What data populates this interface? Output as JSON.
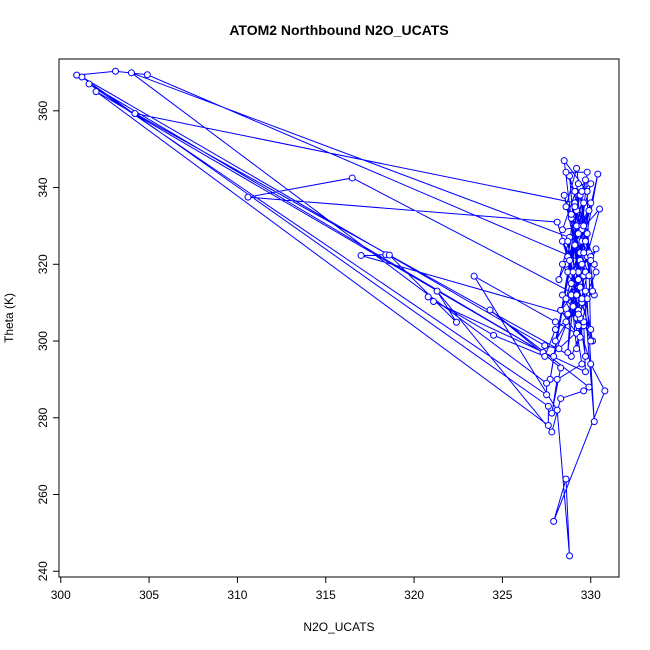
{
  "chart_data": {
    "type": "line",
    "title": "ATOM2 Northbound N2O_UCATS",
    "xlabel": "N2O_UCATS",
    "ylabel": "Theta (K)",
    "xlim": [
      299.9,
      331.6
    ],
    "ylim": [
      238.5,
      373.5
    ],
    "xticks": [
      300,
      305,
      310,
      315,
      320,
      325,
      330
    ],
    "yticks": [
      240,
      260,
      280,
      300,
      320,
      340,
      360
    ],
    "grid": false,
    "color": "#0000ff",
    "marker": "open-circle",
    "series": [
      {
        "points": [
          [
            300.9,
            369.3
          ],
          [
            303.1,
            370.3
          ],
          [
            304.9,
            369.4
          ],
          [
            329.4,
            321.0
          ],
          [
            329.6,
            336.0
          ],
          [
            328.0,
            300.0
          ],
          [
            329.7,
            313.0
          ],
          [
            328.6,
            305.0
          ],
          [
            329.8,
            322.0
          ],
          [
            329.2,
            330.0
          ],
          [
            327.9,
            296.0
          ],
          [
            330.3,
            324.0
          ],
          [
            329.3,
            318.0
          ],
          [
            328.4,
            326.0
          ],
          [
            329.5,
            310.0
          ],
          [
            330.1,
            300.0
          ],
          [
            328.9,
            332.0
          ],
          [
            329.4,
            340.0
          ],
          [
            328.7,
            318.0
          ],
          [
            327.7,
            290.0
          ],
          [
            329.7,
            342.0
          ],
          [
            329.1,
            336.0
          ],
          [
            304.2,
            359.3
          ],
          [
            328.9,
            296.0
          ],
          [
            329.6,
            304.0
          ],
          [
            328.2,
            298.0
          ],
          [
            327.4,
            298.8
          ],
          [
            301.2,
            368.8
          ],
          [
            327.6,
            283.0
          ],
          [
            327.6,
            278.0
          ],
          [
            302.0,
            365.0
          ],
          [
            327.3,
            297.0
          ],
          [
            301.6,
            367.0
          ],
          [
            327.5,
            286.0
          ],
          [
            327.5,
            289.0
          ],
          [
            304.0,
            369.9
          ],
          [
            328.8,
            327.0
          ],
          [
            328.2,
            316.0
          ],
          [
            329.5,
            330.0
          ],
          [
            328.7,
            322.0
          ],
          [
            329.1,
            336.0
          ],
          [
            329.4,
            314.0
          ],
          [
            328.3,
            308.0
          ],
          [
            329.9,
            323.0
          ],
          [
            330.2,
            312.0
          ],
          [
            329.2,
            334.0
          ],
          [
            330.0,
            322.0
          ],
          [
            328.8,
            343.0
          ],
          [
            329.3,
            316.0
          ],
          [
            328.5,
            347.0
          ],
          [
            329.8,
            339.0
          ],
          [
            330.0,
            300.0
          ],
          [
            329.6,
            305.0
          ],
          [
            329.7,
            292.0
          ],
          [
            321.1,
            310.3
          ],
          [
            320.8,
            311.5
          ],
          [
            324.5,
            301.5
          ],
          [
            327.4,
            296.0
          ],
          [
            328.0,
            303.0
          ],
          [
            329.3,
            308.0
          ],
          [
            330.0,
            303.0
          ],
          [
            328.4,
            312.0
          ],
          [
            329.3,
            304.0
          ],
          [
            328.9,
            315.0
          ],
          [
            329.6,
            317.0
          ],
          [
            328.6,
            311.0
          ],
          [
            329.5,
            326.0
          ],
          [
            330.2,
            320.0
          ],
          [
            329.1,
            339.0
          ],
          [
            328.6,
            344.0
          ],
          [
            329.8,
            344.0
          ],
          [
            329.4,
            323.0
          ],
          [
            330.4,
            343.5
          ],
          [
            329.7,
            326.0
          ],
          [
            330.0,
            321.0
          ],
          [
            329.2,
            306.0
          ],
          [
            330.3,
            318.0
          ],
          [
            329.5,
            329.0
          ],
          [
            328.7,
            297.0
          ],
          [
            329.3,
            341.0
          ],
          [
            328.4,
            329.0
          ],
          [
            329.6,
            330.0
          ],
          [
            329.0,
            309.0
          ],
          [
            330.0,
            294.0
          ],
          [
            330.8,
            287.0
          ],
          [
            327.9,
            253.0
          ],
          [
            328.6,
            264.0
          ],
          [
            328.8,
            244.0
          ],
          [
            328.1,
            282.0
          ],
          [
            323.4,
            316.9
          ],
          [
            328.0,
            305.0
          ],
          [
            329.2,
            302.0
          ],
          [
            328.3,
            308.0
          ],
          [
            329.4,
            306.0
          ],
          [
            317.0,
            322.3
          ],
          [
            318.4,
            322.5
          ],
          [
            318.6,
            322.4
          ],
          [
            322.4,
            304.9
          ],
          [
            321.3,
            313.0
          ],
          [
            327.8,
            276.3
          ],
          [
            328.3,
            285.0
          ],
          [
            329.6,
            287.0
          ],
          [
            329.9,
            288.0
          ],
          [
            324.3,
            308.1
          ],
          [
            328.3,
            293.0
          ],
          [
            327.8,
            281.2
          ],
          [
            328.1,
            290.0
          ],
          [
            329.5,
            294.0
          ],
          [
            328.9,
            312.0
          ],
          [
            329.2,
            298.0
          ],
          [
            329.8,
            311.0
          ],
          [
            328.7,
            307.0
          ],
          [
            329.5,
            320.0
          ],
          [
            330.2,
            279.0
          ],
          [
            329.7,
            318.0
          ],
          [
            328.5,
            338.0
          ],
          [
            329.1,
            325.0
          ],
          [
            329.9,
            334.0
          ],
          [
            328.6,
            320.0
          ],
          [
            329.4,
            338.0
          ],
          [
            329.8,
            328.0
          ],
          [
            329.0,
            318.0
          ],
          [
            330.0,
            336.0
          ],
          [
            329.3,
            328.0
          ],
          [
            330.5,
            334.4
          ],
          [
            329.2,
            312.0
          ],
          [
            316.5,
            342.5
          ],
          [
            310.6,
            337.5
          ],
          [
            328.1,
            331.0
          ],
          [
            329.5,
            311.0
          ],
          [
            328.4,
            320.0
          ],
          [
            329.9,
            317.0
          ],
          [
            328.6,
            335.0
          ],
          [
            329.2,
            345.0
          ],
          [
            330.1,
            313.0
          ],
          [
            329.3,
            307.0
          ],
          [
            328.8,
            321.0
          ],
          [
            330.0,
            341.0
          ],
          [
            329.5,
            339.0
          ],
          [
            328.9,
            333.0
          ],
          [
            329.6,
            323.0
          ],
          [
            329.1,
            335.0
          ],
          [
            329.4,
            301.0
          ],
          [
            328.7,
            326.0
          ],
          [
            329.7,
            296.0
          ]
        ]
      }
    ]
  }
}
